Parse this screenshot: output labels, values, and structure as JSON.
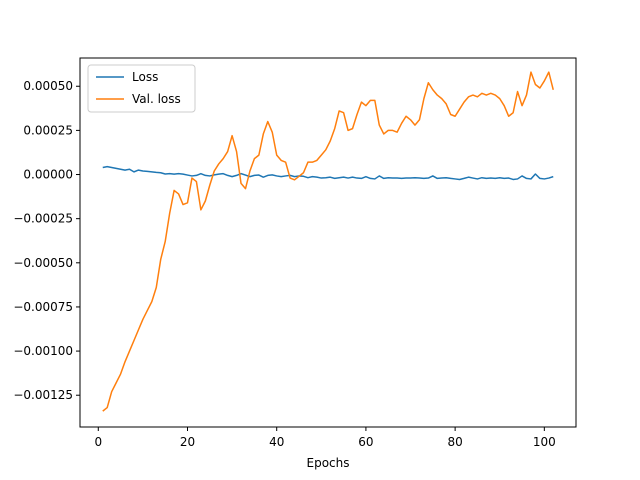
{
  "chart_data": {
    "type": "line",
    "title": "",
    "xlabel": "Epochs",
    "ylabel": "",
    "xlim": [
      -4.1,
      107.1
    ],
    "ylim": [
      -0.00143,
      0.00066
    ],
    "xticks": [
      0,
      20,
      40,
      60,
      80,
      100
    ],
    "xtick_labels": [
      "0",
      "20",
      "40",
      "60",
      "80",
      "100"
    ],
    "yticks": [
      -0.00125,
      -0.001,
      -0.00075,
      -0.0005,
      -0.00025,
      0,
      0.00025,
      0.0005
    ],
    "ytick_labels": [
      "−0.00125",
      "−0.00100",
      "−0.00075",
      "−0.00050",
      "−0.00025",
      "0.00000",
      "0.00025",
      "0.00050"
    ],
    "grid": false,
    "legend_position": "upper-left",
    "series": [
      {
        "name": "Loss",
        "color": "#1f77b4",
        "x": [
          1,
          2,
          3,
          4,
          5,
          6,
          7,
          8,
          9,
          10,
          11,
          12,
          13,
          14,
          15,
          16,
          17,
          18,
          19,
          20,
          21,
          22,
          23,
          24,
          25,
          26,
          27,
          28,
          29,
          30,
          31,
          32,
          33,
          34,
          35,
          36,
          37,
          38,
          39,
          40,
          41,
          42,
          43,
          44,
          45,
          46,
          47,
          48,
          49,
          50,
          51,
          52,
          53,
          54,
          55,
          56,
          57,
          58,
          59,
          60,
          61,
          62,
          63,
          64,
          65,
          66,
          67,
          68,
          69,
          70,
          71,
          72,
          73,
          74,
          75,
          76,
          77,
          78,
          79,
          80,
          81,
          82,
          83,
          84,
          85,
          86,
          87,
          88,
          89,
          90,
          91,
          92,
          93,
          94,
          95,
          96,
          97,
          98,
          99,
          100,
          101,
          102
        ],
        "y": [
          4e-05,
          4.5e-05,
          4e-05,
          3.5e-05,
          3e-05,
          2.5e-05,
          3e-05,
          1.5e-05,
          2.5e-05,
          2e-05,
          1.8e-05,
          1.5e-05,
          1.2e-05,
          1e-05,
          3e-06,
          5e-06,
          2e-06,
          5e-06,
          2e-06,
          -3e-06,
          -8e-06,
          -5e-06,
          5e-06,
          -5e-06,
          -8e-06,
          -2e-06,
          2e-06,
          5e-06,
          -5e-06,
          -1.2e-05,
          -5e-06,
          5e-06,
          -3e-06,
          -1.2e-05,
          -5e-06,
          -3e-06,
          -1.5e-05,
          -5e-06,
          -2e-06,
          -8e-06,
          -1.2e-05,
          -8e-06,
          -5e-06,
          -1.2e-05,
          -8e-06,
          -1e-05,
          -1.8e-05,
          -1.2e-05,
          -1.5e-05,
          -2e-05,
          -1.8e-05,
          -1.5e-05,
          -2.2e-05,
          -1.8e-05,
          -1.5e-05,
          -2e-05,
          -1.5e-05,
          -2e-05,
          -2.2e-05,
          -1.2e-05,
          -2.2e-05,
          -2.5e-05,
          -8e-06,
          -2.2e-05,
          -1.8e-05,
          -2e-05,
          -2e-05,
          -2.2e-05,
          -2e-05,
          -2e-05,
          -1.8e-05,
          -2e-05,
          -2.2e-05,
          -2e-05,
          -8e-06,
          -2.2e-05,
          -2e-05,
          -1.8e-05,
          -2.2e-05,
          -2.5e-05,
          -2.8e-05,
          -2.2e-05,
          -1.5e-05,
          -2e-05,
          -2.5e-05,
          -1.8e-05,
          -2.2e-05,
          -2e-05,
          -2.2e-05,
          -1.8e-05,
          -2.2e-05,
          -2e-05,
          -2.8e-05,
          -2.5e-05,
          -8e-06,
          -2.2e-05,
          -2.5e-05,
          3e-06,
          -2.2e-05,
          -2.5e-05,
          -2e-05,
          -1.2e-05
        ]
      },
      {
        "name": "Val. loss",
        "color": "#ff7f0e",
        "x": [
          1,
          2,
          3,
          4,
          5,
          6,
          7,
          8,
          9,
          10,
          11,
          12,
          13,
          14,
          15,
          16,
          17,
          18,
          19,
          20,
          21,
          22,
          23,
          24,
          25,
          26,
          27,
          28,
          29,
          30,
          31,
          32,
          33,
          34,
          35,
          36,
          37,
          38,
          39,
          40,
          41,
          42,
          43,
          44,
          45,
          46,
          47,
          48,
          49,
          50,
          51,
          52,
          53,
          54,
          55,
          56,
          57,
          58,
          59,
          60,
          61,
          62,
          63,
          64,
          65,
          66,
          67,
          68,
          69,
          70,
          71,
          72,
          73,
          74,
          75,
          76,
          77,
          78,
          79,
          80,
          81,
          82,
          83,
          84,
          85,
          86,
          87,
          88,
          89,
          90,
          91,
          92,
          93,
          94,
          95,
          96,
          97,
          98,
          99,
          100,
          101,
          102
        ],
        "y": [
          -0.00134,
          -0.00132,
          -0.00123,
          -0.00118,
          -0.00113,
          -0.00106,
          -0.001,
          -0.00094,
          -0.00088,
          -0.00082,
          -0.00077,
          -0.00072,
          -0.00064,
          -0.00048,
          -0.00038,
          -0.00022,
          -9e-05,
          -0.00011,
          -0.00017,
          -0.00016,
          -2e-05,
          -4e-05,
          -0.0002,
          -0.00015,
          -6e-05,
          2e-05,
          6e-05,
          9e-05,
          0.00013,
          0.00022,
          0.00013,
          -5e-05,
          -8e-05,
          2e-05,
          9e-05,
          0.00011,
          0.00023,
          0.0003,
          0.00024,
          0.00011,
          8e-05,
          7e-05,
          -2e-05,
          -3e-05,
          -1e-05,
          1e-05,
          7e-05,
          7e-05,
          8e-05,
          0.00011,
          0.00014,
          0.00019,
          0.00026,
          0.00036,
          0.00035,
          0.00025,
          0.00026,
          0.00034,
          0.00041,
          0.00039,
          0.00042,
          0.00042,
          0.00028,
          0.00023,
          0.00025,
          0.00025,
          0.00024,
          0.00029,
          0.00033,
          0.00031,
          0.00028,
          0.00031,
          0.00043,
          0.00052,
          0.00048,
          0.00045,
          0.00043,
          0.0004,
          0.00034,
          0.00033,
          0.00037,
          0.00041,
          0.00044,
          0.00045,
          0.00044,
          0.00046,
          0.00045,
          0.00046,
          0.00045,
          0.00043,
          0.00039,
          0.00033,
          0.00035,
          0.00047,
          0.00039,
          0.00045,
          0.00058,
          0.00051,
          0.00049,
          0.00053,
          0.00058,
          0.00048
        ]
      }
    ]
  }
}
